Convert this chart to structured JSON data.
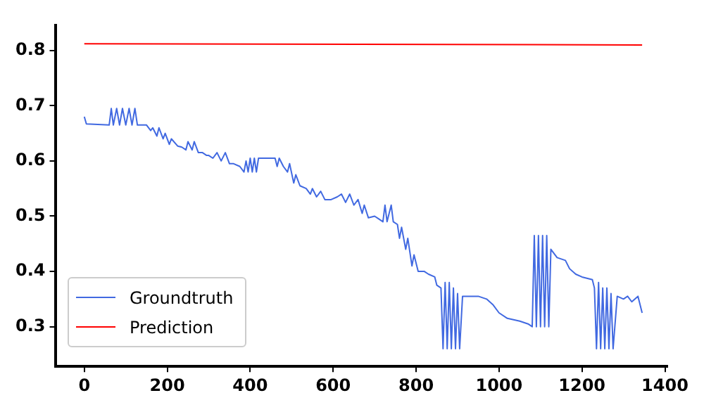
{
  "chart_data": {
    "type": "line",
    "xlim": [
      -70,
      1406
    ],
    "ylim": [
      0.228,
      0.845
    ],
    "xticks": [
      0,
      200,
      400,
      600,
      800,
      1000,
      1200,
      1400
    ],
    "yticks": [
      0.3,
      0.4,
      0.5,
      0.6,
      0.7,
      0.8
    ],
    "grid": false,
    "legend": "bottom left",
    "marker": "none",
    "line_style": "solid",
    "series": [
      {
        "name": "Groundtruth",
        "color": "#4169e1",
        "x": [
          0,
          5,
          60,
          65,
          70,
          78,
          85,
          92,
          100,
          108,
          115,
          122,
          128,
          150,
          160,
          165,
          175,
          180,
          190,
          195,
          205,
          210,
          225,
          235,
          245,
          250,
          260,
          265,
          275,
          285,
          295,
          300,
          310,
          320,
          330,
          340,
          350,
          360,
          375,
          385,
          390,
          395,
          400,
          405,
          410,
          415,
          420,
          460,
          465,
          470,
          480,
          490,
          495,
          505,
          510,
          520,
          535,
          545,
          550,
          560,
          570,
          580,
          595,
          610,
          620,
          630,
          640,
          650,
          660,
          670,
          675,
          685,
          700,
          710,
          720,
          725,
          730,
          740,
          745,
          755,
          760,
          765,
          775,
          780,
          790,
          795,
          805,
          820,
          830,
          845,
          850,
          860,
          865,
          870,
          875,
          880,
          885,
          890,
          895,
          900,
          905,
          912,
          930,
          950,
          970,
          985,
          1000,
          1020,
          1050,
          1070,
          1080,
          1085,
          1090,
          1095,
          1100,
          1105,
          1110,
          1115,
          1120,
          1125,
          1140,
          1160,
          1170,
          1185,
          1200,
          1225,
          1230,
          1235,
          1240,
          1245,
          1250,
          1255,
          1260,
          1265,
          1270,
          1275,
          1285,
          1300,
          1310,
          1320,
          1335,
          1345
        ],
        "values": [
          0.68,
          0.667,
          0.665,
          0.695,
          0.665,
          0.695,
          0.665,
          0.695,
          0.665,
          0.695,
          0.665,
          0.695,
          0.665,
          0.665,
          0.655,
          0.66,
          0.645,
          0.66,
          0.64,
          0.65,
          0.63,
          0.64,
          0.627,
          0.625,
          0.62,
          0.635,
          0.62,
          0.635,
          0.615,
          0.615,
          0.61,
          0.61,
          0.605,
          0.615,
          0.6,
          0.615,
          0.595,
          0.595,
          0.59,
          0.58,
          0.6,
          0.58,
          0.605,
          0.58,
          0.605,
          0.58,
          0.605,
          0.605,
          0.59,
          0.605,
          0.59,
          0.58,
          0.595,
          0.56,
          0.575,
          0.555,
          0.55,
          0.54,
          0.55,
          0.535,
          0.545,
          0.53,
          0.53,
          0.535,
          0.54,
          0.525,
          0.54,
          0.52,
          0.53,
          0.505,
          0.52,
          0.497,
          0.5,
          0.495,
          0.49,
          0.52,
          0.49,
          0.52,
          0.49,
          0.485,
          0.46,
          0.48,
          0.44,
          0.46,
          0.41,
          0.43,
          0.4,
          0.4,
          0.395,
          0.39,
          0.375,
          0.37,
          0.26,
          0.38,
          0.26,
          0.38,
          0.26,
          0.37,
          0.26,
          0.36,
          0.26,
          0.355,
          0.355,
          0.355,
          0.35,
          0.34,
          0.325,
          0.315,
          0.31,
          0.305,
          0.3,
          0.465,
          0.3,
          0.465,
          0.3,
          0.465,
          0.3,
          0.465,
          0.3,
          0.44,
          0.425,
          0.42,
          0.405,
          0.395,
          0.39,
          0.385,
          0.37,
          0.26,
          0.38,
          0.26,
          0.37,
          0.26,
          0.37,
          0.26,
          0.36,
          0.26,
          0.355,
          0.35,
          0.355,
          0.345,
          0.355,
          0.325
        ]
      },
      {
        "name": "Prediction",
        "color": "#ff0000",
        "x": [
          0,
          1345
        ],
        "values": [
          0.812,
          0.81
        ]
      }
    ]
  }
}
